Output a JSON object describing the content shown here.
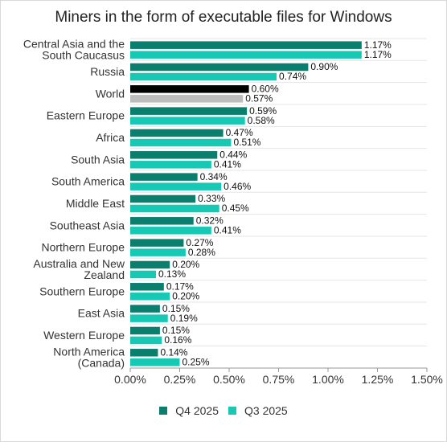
{
  "chart_data": {
    "type": "bar",
    "orientation": "horizontal",
    "title": "Miners in the form of executable files for Windows",
    "categories": [
      "Central Asia and the South Caucasus",
      "Russia",
      "World",
      "Eastern Europe",
      "Africa",
      "South Asia",
      "South America",
      "Middle East",
      "Southeast Asia",
      "Northern Europe",
      "Australia and New Zealand",
      "Southern Europe",
      "East Asia",
      "Western Europe",
      "North America (Canada)"
    ],
    "category_lines": [
      [
        "Central Asia and the",
        "South Caucasus"
      ],
      [
        "Russia"
      ],
      [
        "World"
      ],
      [
        "Eastern Europe"
      ],
      [
        "Africa"
      ],
      [
        "South Asia"
      ],
      [
        "South America"
      ],
      [
        "Middle East"
      ],
      [
        "Southeast Asia"
      ],
      [
        "Northern Europe"
      ],
      [
        "Australia and New",
        "Zealand"
      ],
      [
        "Southern Europe"
      ],
      [
        "East Asia"
      ],
      [
        "Western Europe"
      ],
      [
        "North America",
        "(Canada)"
      ]
    ],
    "series": [
      {
        "name": "Q4 2025",
        "color": "#0a7f6e",
        "values": [
          1.17,
          0.9,
          0.6,
          0.59,
          0.47,
          0.44,
          0.34,
          0.33,
          0.32,
          0.27,
          0.2,
          0.17,
          0.15,
          0.15,
          0.14
        ],
        "labels": [
          "1.17%",
          "0.90%",
          "0.60%",
          "0.59%",
          "0.47%",
          "0.44%",
          "0.34%",
          "0.33%",
          "0.32%",
          "0.27%",
          "0.20%",
          "0.17%",
          "0.15%",
          "0.15%",
          "0.14%"
        ]
      },
      {
        "name": "Q3 2025",
        "color": "#17c9b4",
        "values": [
          1.17,
          0.74,
          0.57,
          0.58,
          0.51,
          0.41,
          0.46,
          0.45,
          0.41,
          0.28,
          0.13,
          0.2,
          0.19,
          0.16,
          0.25
        ],
        "labels": [
          "1.17%",
          "0.74%",
          "0.57%",
          "0.58%",
          "0.51%",
          "0.41%",
          "0.46%",
          "0.45%",
          "0.41%",
          "0.28%",
          "0.13%",
          "0.20%",
          "0.19%",
          "0.16%",
          "0.25%"
        ]
      }
    ],
    "highlight": {
      "category": "World",
      "colors": [
        "#000000",
        "#bdbdbd"
      ]
    },
    "xlim": [
      0,
      1.5
    ],
    "xticks": [
      0,
      0.25,
      0.5,
      0.75,
      1.0,
      1.25,
      1.5
    ],
    "xtick_labels": [
      "0.00%",
      "0.25%",
      "0.50%",
      "0.75%",
      "1.00%",
      "1.25%",
      "1.50%"
    ],
    "grid": true,
    "legend_position": "bottom-center"
  }
}
